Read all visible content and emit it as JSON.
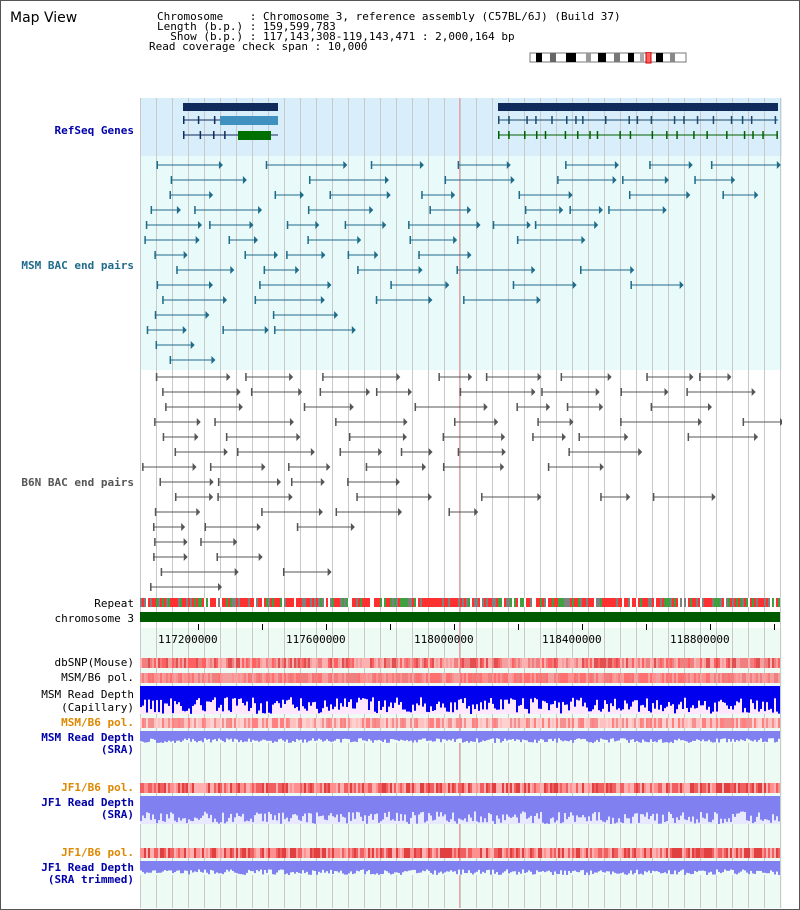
{
  "page": {
    "title": "Map View"
  },
  "header": {
    "line1": "Chromosome    : Chromosome 3, reference assembly (C57BL/6J) (Build 37)",
    "line2": "Length (b.p.) : 159,599,783",
    "line3": "  Show (b.p.) : 117,143,308-119,143,471 : 2,000,164 bp",
    "line4": "Read coverage check span : 10,000"
  },
  "tracks": {
    "refseq": "RefSeq Genes",
    "msm_bac": "MSM BAC end pairs",
    "b6n_bac": "B6N BAC end pairs",
    "repeat": "Repeat",
    "chromosome": "chromosome 3",
    "dbsnp": "dbSNP(Mouse)",
    "msm_b6_pol_1": "MSM/B6 pol.",
    "msm_depth_cap_1": "MSM Read Depth",
    "msm_depth_cap_2": "(Capillary)",
    "msm_b6_pol_2": "MSM/B6 pol.",
    "msm_depth_sra_1": "MSM Read Depth",
    "msm_depth_sra_2": "(SRA)",
    "jf1_b6_pol_1": "JF1/B6 pol.",
    "jf1_depth_sra_1": "JF1 Read Depth",
    "jf1_depth_sra_2": "(SRA)",
    "jf1_b6_pol_2": "JF1/B6 pol.",
    "jf1_depth_trim_1": "JF1 Read Depth",
    "jf1_depth_trim_2": "(SRA trimmed)"
  },
  "axis": {
    "labels": [
      "117200000",
      "117600000",
      "118000000",
      "118400000",
      "118800000"
    ]
  },
  "colors": {
    "refseq_bg": "#d8eefa",
    "bac_bg": "#e8fafa",
    "gene_dark": "#102a5c",
    "msm_line": "#1f6b8a",
    "b6n_line": "#555555",
    "chrom_green": "#005a00",
    "depth_blue": "#0000ee",
    "depth_light": "#8080f0",
    "label_blue": "#0000aa",
    "label_teal": "#1f6b8a",
    "label_gray": "#555555",
    "label_orange": "#dd8800"
  }
}
